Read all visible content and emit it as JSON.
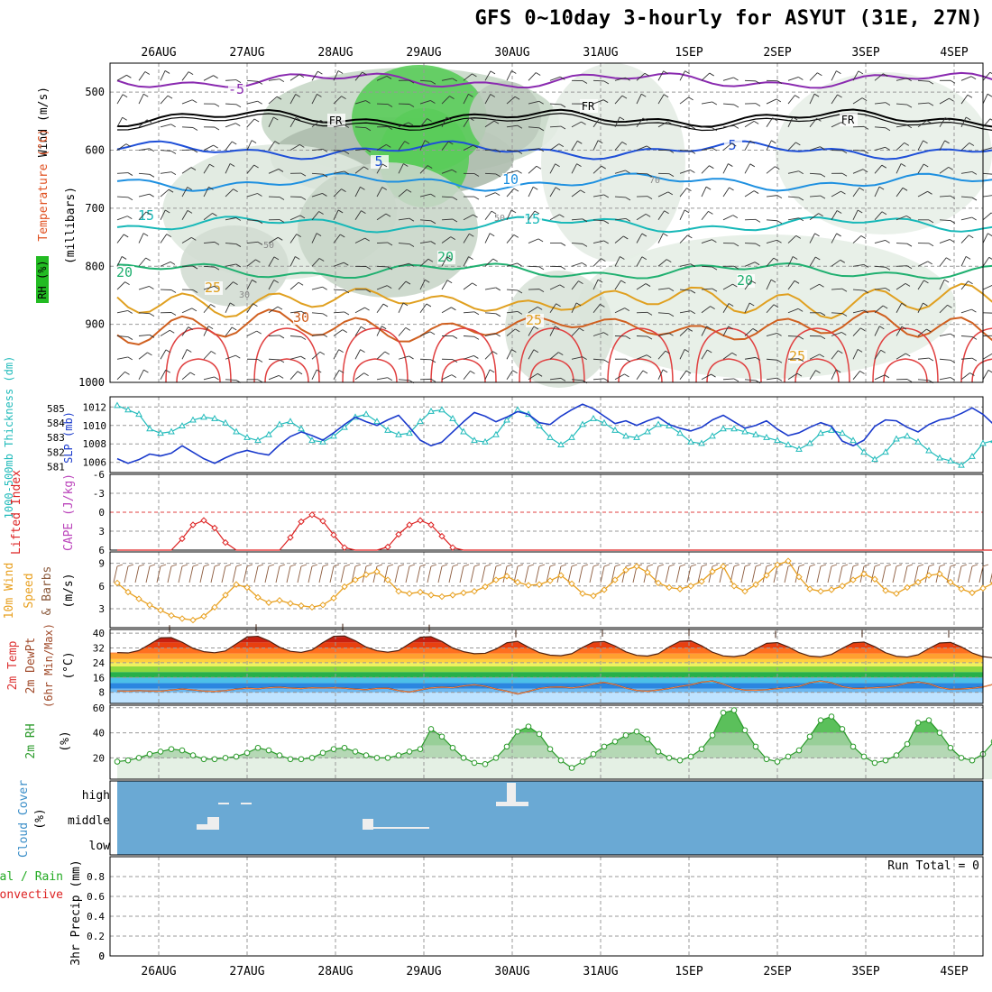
{
  "title": "GFS 0~10day 3-hourly for ASYUT (31E, 27N)",
  "colors": {
    "temperature": "#e05020",
    "wind": "#000000",
    "rh": "#22bb22",
    "thickness": "#22bbbb",
    "slp": "#1a3acc",
    "cape": "#bb44bb",
    "lifted": "#dd2222",
    "wind10": "#e8a020",
    "barb10": "#8b5a3c",
    "temp2m": "#dd3333",
    "dewpt": "#ff8844",
    "rh2m": "#2a9a2a",
    "cloud": "#6aa9d4",
    "precipTotal": "#22aa22",
    "precipConv": "#dd2222"
  },
  "chart_data": [
    {
      "type": "area",
      "name": "upper-air cross section",
      "dates": [
        "26AUG",
        "27AUG",
        "28AUG",
        "29AUG",
        "30AUG",
        "31AUG",
        "1SEP",
        "2SEP",
        "3SEP",
        "4SEP"
      ],
      "ylabel_left": "Wind (m/s)",
      "ylabel_temperature": "Temperature (°C)",
      "ylabel_pressure": "(millibars)",
      "ylabel_rh": "RH (%)",
      "yticks": [
        500,
        600,
        700,
        800,
        900,
        1000
      ],
      "ylim": [
        1000,
        450
      ],
      "isotherm_labels": [
        "-5",
        "FR",
        "5",
        "10",
        "15",
        "20",
        "25",
        "30"
      ],
      "rh_labels": [
        "50",
        "30",
        "70"
      ],
      "isotherms": [
        {
          "label": "-5",
          "color": "#8a2ab0",
          "p": 480
        },
        {
          "label": "FR",
          "color": "#000000",
          "p": 545
        },
        {
          "label": "5",
          "color": "#1e4fd8",
          "p": 600
        },
        {
          "label": "10",
          "color": "#1e90e0",
          "p": 655
        },
        {
          "label": "15",
          "color": "#17b8b8",
          "p": 728
        },
        {
          "label": "20",
          "color": "#20b070",
          "p": 808
        },
        {
          "label": "25",
          "color": "#e0a020",
          "p": 860
        },
        {
          "label": "30",
          "color": "#d06020",
          "p": 905
        }
      ]
    },
    {
      "type": "line",
      "name": "1000-500mb thickness and SLP",
      "ylabel": "1000-500mb Thickness (dm)",
      "ylabel2": "SLP (mb)",
      "left_ticks": [
        581,
        582,
        583,
        584,
        585
      ],
      "ylim": [
        580.6,
        585.8
      ],
      "right_ticks": [
        1006,
        1008,
        1010,
        1012
      ],
      "ylim2": [
        1004.9,
        1013.1
      ],
      "series": [
        {
          "name": "Thickness",
          "values": [
            585.2,
            584.9,
            584.6,
            583.6,
            583.3,
            583.4,
            583.8,
            584.2,
            584.4,
            584.3,
            584.0,
            583.4,
            583.0,
            582.8,
            583.2,
            583.9,
            584.1,
            583.6,
            582.8,
            582.7,
            583.1,
            583.7,
            584.4,
            584.6,
            584.1,
            583.5,
            583.2,
            583.3,
            584.1,
            584.8,
            584.9,
            584.3,
            583.4,
            582.8,
            582.7,
            583.2,
            584.2,
            584.9,
            584.6,
            583.8,
            583.0,
            582.5,
            583.0,
            583.9,
            584.3,
            584.0,
            583.5,
            583.1,
            583.0,
            583.4,
            583.9,
            583.8,
            583.3,
            582.7,
            582.6,
            583.1,
            583.6,
            583.6,
            583.4,
            583.2,
            583.0,
            582.8,
            582.5,
            582.2,
            582.6,
            583.3,
            583.5,
            583.3,
            582.8,
            582.0,
            581.5,
            582.0,
            582.9,
            583.1,
            582.7,
            582.1,
            581.6,
            581.4,
            581.1,
            581.7,
            582.6,
            582.8,
            582.4,
            582.0
          ]
        },
        {
          "name": "SLP",
          "values": [
            1006.4,
            1005.9,
            1006.3,
            1006.9,
            1006.7,
            1007.0,
            1007.8,
            1007.1,
            1006.4,
            1005.9,
            1006.5,
            1007.0,
            1007.3,
            1007.0,
            1006.8,
            1007.9,
            1008.8,
            1009.3,
            1008.9,
            1008.4,
            1009.2,
            1010.1,
            1010.9,
            1010.4,
            1010.0,
            1010.6,
            1011.1,
            1009.8,
            1008.4,
            1007.8,
            1008.2,
            1009.3,
            1010.4,
            1011.4,
            1011.0,
            1010.4,
            1010.9,
            1011.5,
            1011.2,
            1010.3,
            1010.1,
            1011.0,
            1011.7,
            1012.3,
            1011.8,
            1011.0,
            1010.2,
            1010.5,
            1010.0,
            1010.5,
            1010.9,
            1010.1,
            1009.7,
            1009.4,
            1009.8,
            1010.6,
            1011.1,
            1010.4,
            1009.7,
            1010.0,
            1010.5,
            1009.6,
            1008.9,
            1009.2,
            1009.8,
            1010.3,
            1009.9,
            1008.3,
            1007.8,
            1008.4,
            1009.9,
            1010.6,
            1010.5,
            1009.8,
            1009.3,
            1010.1,
            1010.6,
            1010.8,
            1011.3,
            1011.9,
            1011.2,
            1010.1,
            1008.6,
            1007.8
          ]
        }
      ]
    },
    {
      "type": "line",
      "name": "Lifted Index and CAPE",
      "ylabel": "Lifted Index",
      "ylabel2": "CAPE (J/kg)",
      "yticks": [
        -6,
        -3,
        0,
        3,
        6
      ],
      "ylim": [
        -6,
        6
      ],
      "series": [
        {
          "name": "Lifted Index",
          "values": [
            6.5,
            6.5,
            6.5,
            6.5,
            6.5,
            6.3,
            4.2,
            2.0,
            1.3,
            2.5,
            4.8,
            6.5,
            6.5,
            6.5,
            6.5,
            6.0,
            4.0,
            1.5,
            0.4,
            1.4,
            3.6,
            5.6,
            6.5,
            6.5,
            6.5,
            5.5,
            3.5,
            2.0,
            1.3,
            2.0,
            3.8,
            5.6,
            6.5,
            6.5,
            6.5,
            6.5,
            6.5,
            6.5,
            6.5,
            6.5,
            6.5,
            6.5,
            6.5,
            6.5,
            6.5,
            6.5,
            6.5,
            6.5,
            6.5,
            6.5,
            6.5,
            6.5,
            6.5,
            6.5,
            6.5,
            6.5,
            6.5,
            6.5,
            6.5,
            6.5,
            6.5,
            6.5,
            6.5,
            6.5,
            6.5,
            6.5,
            6.5,
            6.5,
            6.5,
            6.5,
            6.5,
            6.5,
            6.5,
            6.5,
            6.5,
            6.5,
            6.5,
            6.5,
            6.5,
            6.5,
            6.5,
            6.5,
            6.5,
            6.5
          ]
        }
      ]
    },
    {
      "type": "line",
      "name": "10m wind speed and barbs",
      "ylabel": "10m Wind Speed & Barbs",
      "yunit": "(m/s)",
      "yticks": [
        3,
        6,
        9
      ],
      "ylim": [
        0.5,
        10.5
      ],
      "series": [
        {
          "name": "Speed",
          "values": [
            6.4,
            5.2,
            4.3,
            3.5,
            2.8,
            2.1,
            1.7,
            1.5,
            2.0,
            3.2,
            4.8,
            6.2,
            5.8,
            4.5,
            3.8,
            4.1,
            3.7,
            3.4,
            3.2,
            3.5,
            4.4,
            5.9,
            6.8,
            7.5,
            7.9,
            6.8,
            5.3,
            5.0,
            5.2,
            4.8,
            4.6,
            4.8,
            5.1,
            5.3,
            5.9,
            6.8,
            7.3,
            6.5,
            6.1,
            6.2,
            6.7,
            7.4,
            6.3,
            5.0,
            4.7,
            5.5,
            6.8,
            8.1,
            8.6,
            7.8,
            6.4,
            5.8,
            5.6,
            6.0,
            6.6,
            7.9,
            8.6,
            6.0,
            5.3,
            6.2,
            7.4,
            8.8,
            9.3,
            7.2,
            5.6,
            5.3,
            5.5,
            6.0,
            6.8,
            7.6,
            6.9,
            5.4,
            5.0,
            5.8,
            6.5,
            7.4,
            7.6,
            6.5,
            5.6,
            5.1,
            5.7,
            6.4,
            6.8,
            6.4
          ]
        }
      ]
    },
    {
      "type": "line",
      "name": "2m temperature and dew point",
      "ylabel": "2m Temp",
      "ylabel2": "2m DewPt",
      "ylabel3": "(6hr Min/Max)",
      "yunit": "(°C)",
      "yticks": [
        8,
        16,
        24,
        32,
        40
      ],
      "ylim": [
        2,
        42
      ],
      "series": [
        {
          "name": "Temp",
          "values": [
            29.5,
            29.3,
            30.6,
            34.0,
            37.5,
            37.6,
            35.1,
            31.8,
            30.0,
            29.4,
            30.4,
            34.2,
            38.0,
            38.3,
            35.9,
            32.4,
            30.2,
            29.6,
            30.9,
            34.9,
            38.3,
            38.5,
            35.9,
            32.5,
            30.5,
            29.7,
            30.6,
            34.3,
            37.8,
            38.1,
            35.5,
            32.0,
            30.0,
            28.9,
            29.1,
            31.4,
            34.8,
            35.6,
            32.4,
            29.5,
            28.1,
            27.8,
            28.9,
            32.3,
            35.2,
            35.5,
            33.1,
            29.9,
            28.0,
            27.6,
            28.9,
            32.6,
            35.6,
            35.9,
            33.2,
            29.7,
            27.7,
            27.3,
            28.2,
            31.5,
            34.5,
            34.9,
            32.6,
            29.5,
            27.6,
            27.2,
            28.5,
            31.8,
            34.8,
            35.2,
            32.7,
            29.4,
            27.5,
            27.1,
            28.3,
            31.7,
            34.7,
            35.0,
            32.6,
            29.3,
            27.3,
            26.6,
            26.3,
            27.0
          ]
        },
        {
          "name": "DewPt",
          "values": [
            8.8,
            8.6,
            8.9,
            8.7,
            8.6,
            9.2,
            9.8,
            9.3,
            8.7,
            8.5,
            8.9,
            9.7,
            10.2,
            9.9,
            10.5,
            10.8,
            10.3,
            10.0,
            10.5,
            10.3,
            10.5,
            10.2,
            9.7,
            9.4,
            10.1,
            10.2,
            8.9,
            8.2,
            9.3,
            10.4,
            10.8,
            10.5,
            11.5,
            12.1,
            11.3,
            9.8,
            8.6,
            7.1,
            8.5,
            10.1,
            10.8,
            10.9,
            10.4,
            11.1,
            12.6,
            13.4,
            12.2,
            10.3,
            9.0,
            8.6,
            9.2,
            10.1,
            11.2,
            12.1,
            13.5,
            14.1,
            12.5,
            10.1,
            9.2,
            9.1,
            9.4,
            10.0,
            10.5,
            11.2,
            13.2,
            14.1,
            13.2,
            11.1,
            10.1,
            10.2,
            10.5,
            10.8,
            11.6,
            13.1,
            13.6,
            12.7,
            10.6,
            9.6,
            9.8,
            10.2,
            10.9,
            12.4,
            13.9,
            15.4
          ]
        }
      ]
    },
    {
      "type": "area",
      "name": "2m relative humidity",
      "ylabel": "2m RH",
      "yunit": "(%)",
      "yticks": [
        20,
        40,
        60
      ],
      "ylim": [
        3,
        62
      ],
      "series": [
        {
          "name": "RH",
          "values": [
            17,
            18,
            20,
            23,
            25,
            27,
            26,
            22,
            19,
            19,
            20,
            21,
            24,
            28,
            26,
            22,
            19,
            19,
            20,
            24,
            27,
            28,
            25,
            22,
            20,
            20,
            22,
            25,
            27,
            43,
            37,
            28,
            20,
            16,
            15,
            20,
            29,
            41,
            45,
            39,
            27,
            18,
            12,
            17,
            23,
            29,
            33,
            38,
            41,
            35,
            25,
            20,
            18,
            21,
            27,
            38,
            56,
            58,
            42,
            29,
            19,
            17,
            21,
            26,
            37,
            50,
            53,
            43,
            29,
            21,
            16,
            18,
            22,
            31,
            48,
            50,
            40,
            28,
            20,
            18,
            23,
            33,
            50,
            55
          ]
        }
      ]
    },
    {
      "type": "bar",
      "name": "Cloud Cover",
      "ylabel": "Cloud Cover",
      "yunit": "(%)",
      "levels": [
        "high",
        "middle",
        "low"
      ],
      "note": "mostly clear; small middle-level patches near 26-28AUG and a high cloud spike on 30AUG"
    },
    {
      "type": "bar",
      "name": "3hr precipitation",
      "ylabel": "3hr Precip (mm)",
      "legend": [
        "Total / Rain",
        "Convective"
      ],
      "yticks": [
        0,
        0.2,
        0.4,
        0.6,
        0.8
      ],
      "ylim": [
        0,
        1
      ],
      "run_total_label": "Run Total = 0",
      "values": [
        0
      ]
    }
  ]
}
